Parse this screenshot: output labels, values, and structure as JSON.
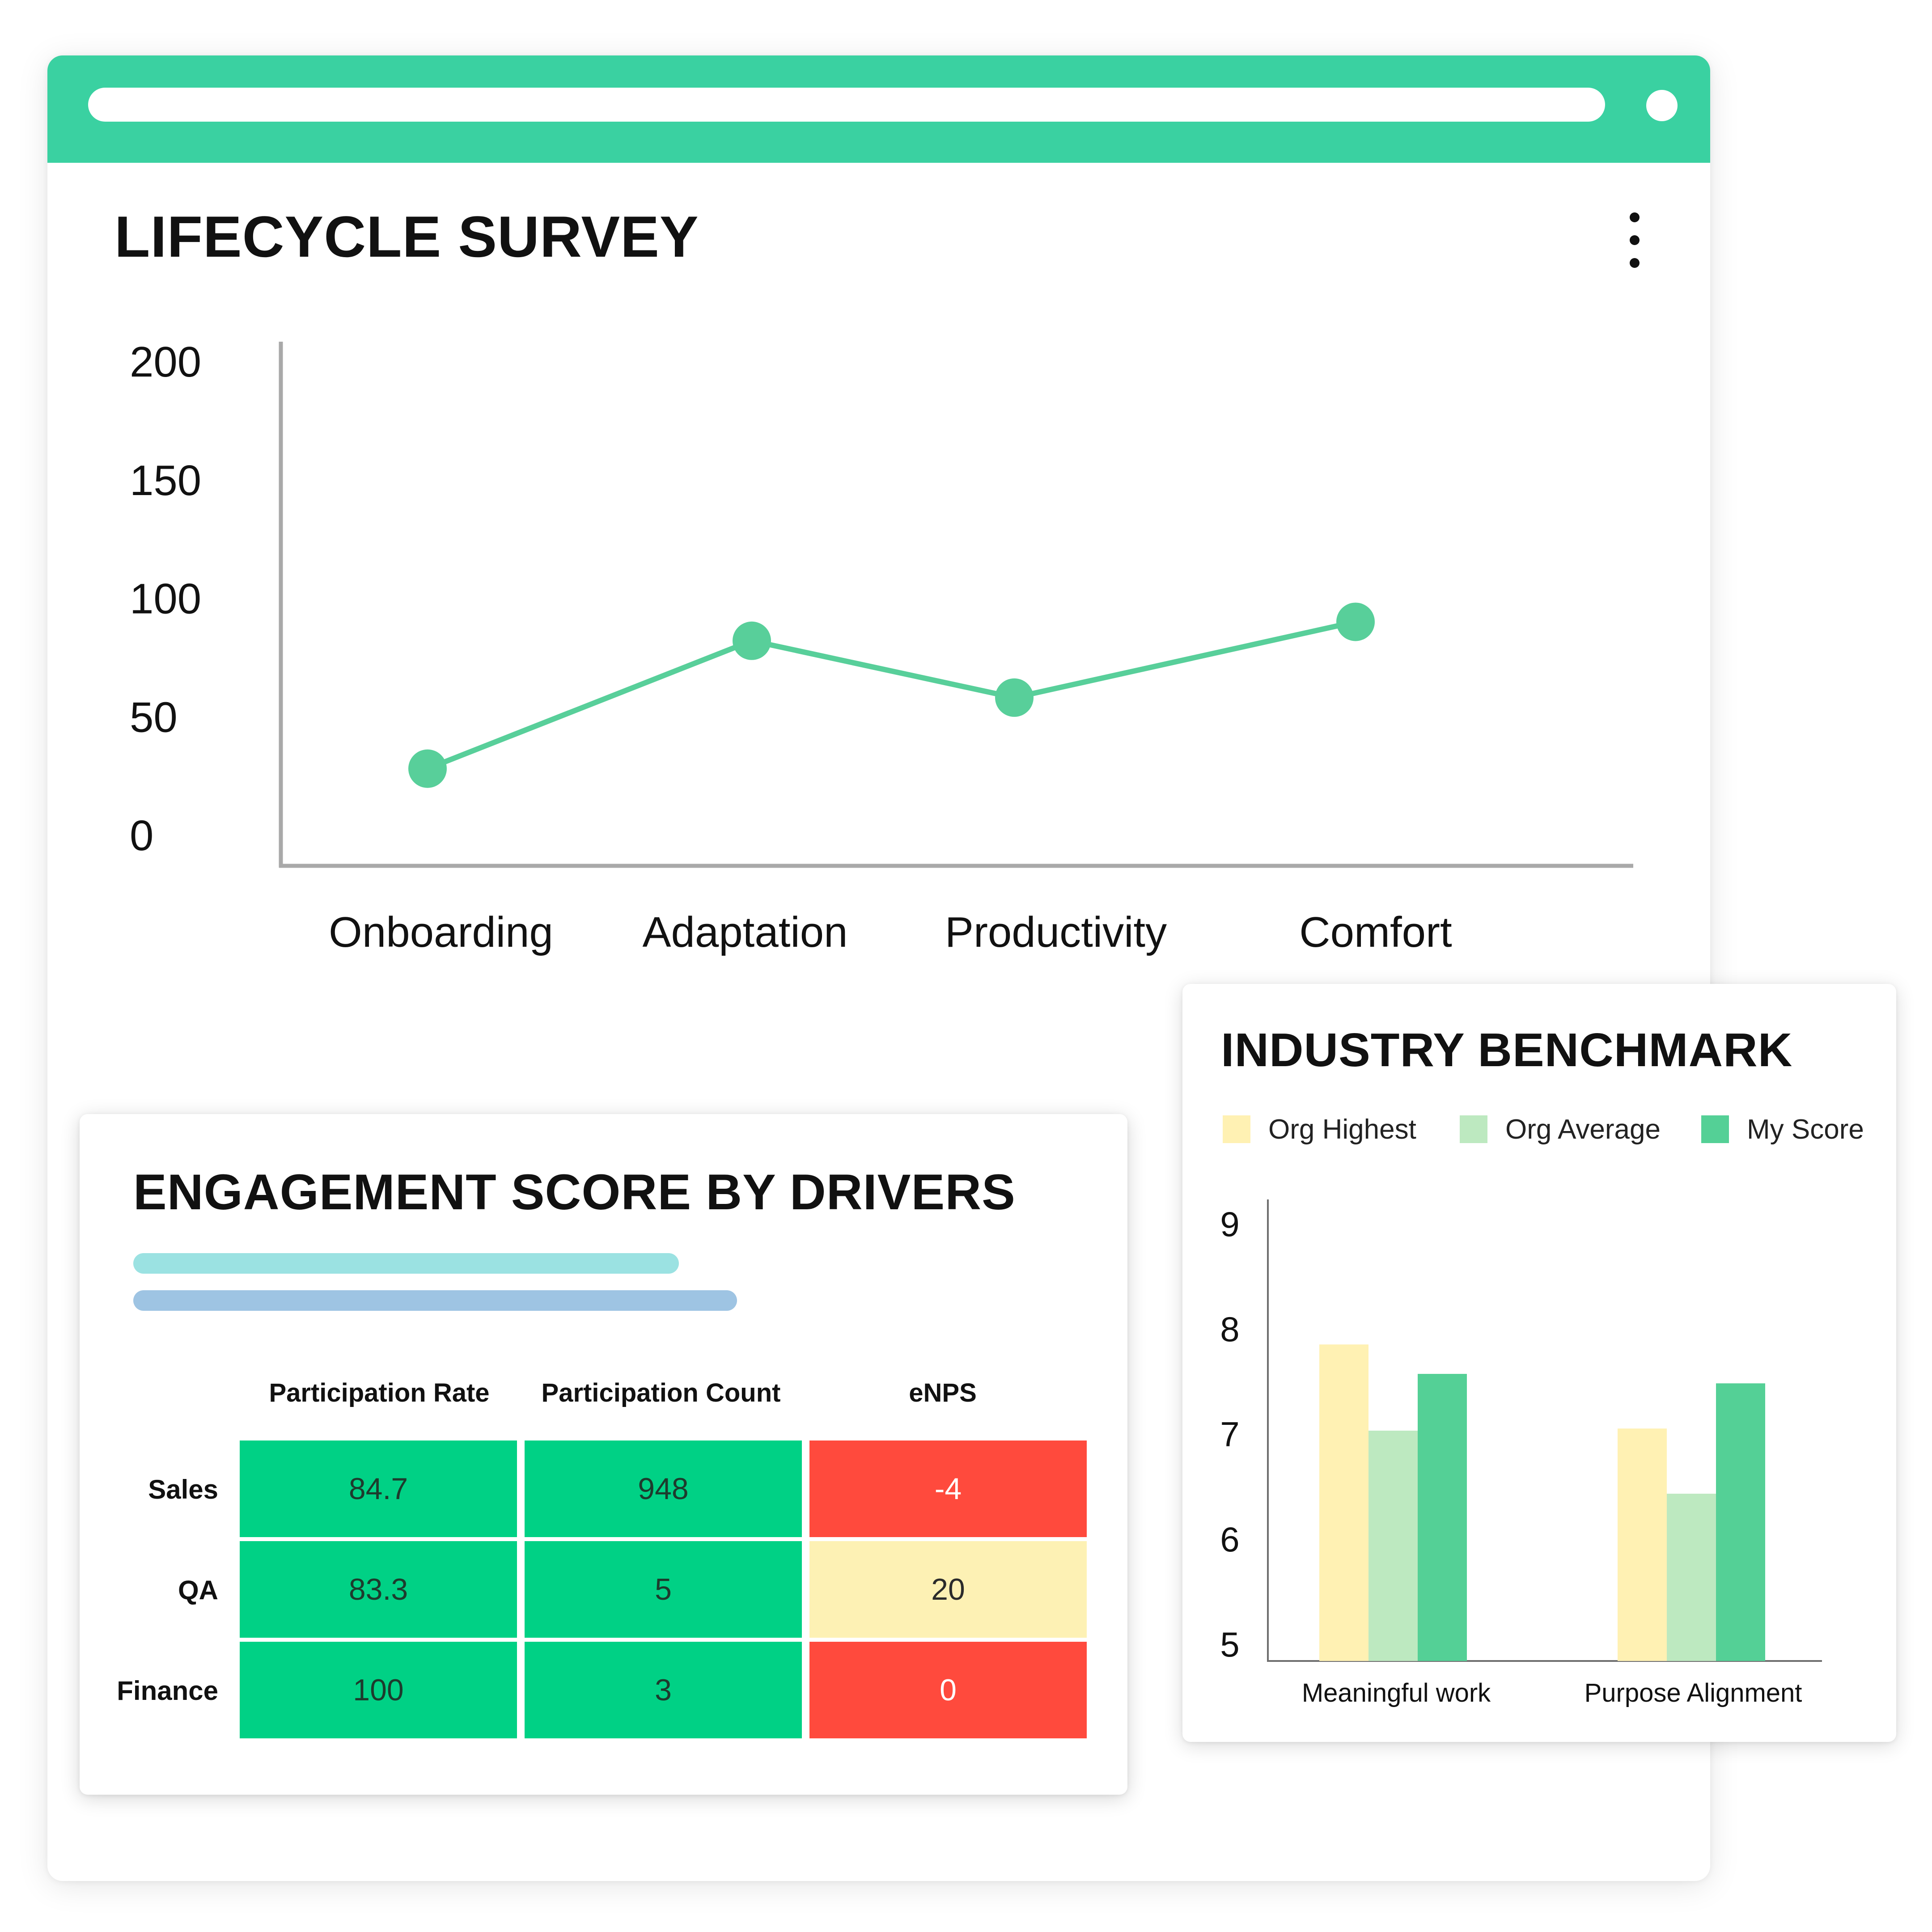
{
  "lifecycle": {
    "title": "LIFECYCLE SURVEY",
    "menu_icon": "more-vertical-icon",
    "chart_data": {
      "type": "line",
      "title": "LIFECYCLE SURVEY",
      "categories": [
        "Onboarding",
        "Adaptation",
        "Productivity",
        "Comfort"
      ],
      "series": [
        {
          "values": [
            28,
            82,
            58,
            90
          ],
          "color": "#58cf9a"
        }
      ],
      "yticks": [
        "0",
        "50",
        "100",
        "150",
        "200"
      ],
      "ylim": [
        0,
        200
      ],
      "xlabel": "",
      "ylabel": "",
      "grid": false,
      "legend": "none"
    }
  },
  "engagement": {
    "title": "ENGAGEMENT SCORE BY DRIVERS",
    "chart_data": {
      "type": "table",
      "columns": [
        "Participation Rate",
        "Participation Count",
        "eNPS"
      ],
      "rows": [
        {
          "label": "Sales",
          "values": [
            "84.7",
            "948",
            "-4"
          ],
          "status": [
            "green",
            "green",
            "red"
          ]
        },
        {
          "label": "QA",
          "values": [
            "83.3",
            "5",
            "20"
          ],
          "status": [
            "green",
            "green",
            "yellow"
          ]
        },
        {
          "label": "Finance",
          "values": [
            "100",
            "3",
            "0"
          ],
          "status": [
            "green",
            "green",
            "red"
          ]
        }
      ],
      "status_colors": {
        "green": "#00d185",
        "red": "#ff4a3d",
        "yellow": "#fdf1b4"
      }
    }
  },
  "benchmark": {
    "title": "INDUSTRY BENCHMARK",
    "chart_data": {
      "type": "bar",
      "title": "INDUSTRY BENCHMARK",
      "categories": [
        "Meaningful work",
        "Purpose Alignment"
      ],
      "series": [
        {
          "name": "Org Highest",
          "values": [
            7.85,
            7.05
          ],
          "color": "#fff1b3"
        },
        {
          "name": "Org Average",
          "values": [
            7.03,
            6.43
          ],
          "color": "#bde9c0"
        },
        {
          "name": "My Score",
          "values": [
            7.57,
            7.48
          ],
          "color": "#54d096"
        }
      ],
      "yticks": [
        "5",
        "6",
        "7",
        "8",
        "9"
      ],
      "ylim": [
        5,
        9
      ],
      "xlabel": "",
      "ylabel": "",
      "grid": false,
      "legend": "top"
    }
  }
}
